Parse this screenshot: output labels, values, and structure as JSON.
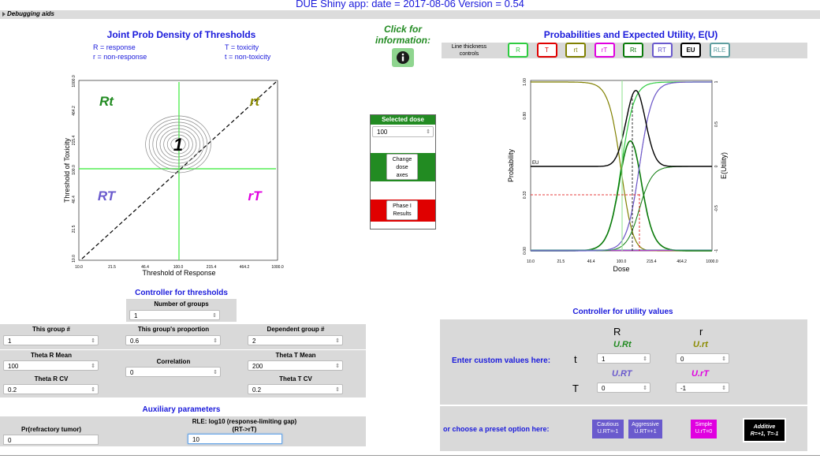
{
  "app_title": "DUE Shiny app: date = 2017-08-06 Version = 0.54",
  "debug_label": "Debugging aids",
  "left": {
    "heading": "Joint Prob Density of Thresholds",
    "legend": {
      "R": "R = response",
      "r": "r = non-response",
      "T": "T = toxicity",
      "t": "t = non-toxicity"
    },
    "quadrants": {
      "Rt": "Rt",
      "rt": "rt",
      "RT": "RT",
      "rT": "rT"
    },
    "peak_label": "1",
    "xlabel": "Threshold of Response",
    "ylabel": "Threshold of Toxicity",
    "ticks": [
      "10.0",
      "21.5",
      "46.4",
      "100.0",
      "215.4",
      "464.2",
      "1000.0"
    ]
  },
  "info": {
    "text1": "Click for",
    "text2": "information:",
    "icon": "info-icon"
  },
  "dose_box": {
    "header": "Selected dose",
    "value": "100",
    "btn1": [
      "Change",
      "dose",
      "axes"
    ],
    "btn2": [
      "Phase I",
      "Results"
    ]
  },
  "right": {
    "heading": "Probabilities and Expected Utility, E(U)",
    "line_thickness_label": [
      "Line thickness",
      "controls"
    ],
    "lt_buttons": [
      {
        "label": "R",
        "color": "#2ecc40"
      },
      {
        "label": "T",
        "color": "#e00000"
      },
      {
        "label": "rt",
        "color": "#808000"
      },
      {
        "label": "rT",
        "color": "#e000e0"
      },
      {
        "label": "Rt",
        "color": "#0a7a0a"
      },
      {
        "label": "RT",
        "color": "#6a5acd"
      },
      {
        "label": "EU",
        "color": "#000000"
      },
      {
        "label": "RLE",
        "color": "#5f9ea0"
      }
    ],
    "xlabel": "Dose",
    "ylabel_left": "Probability",
    "ylabel_right": "E(Utility)",
    "xticks": [
      "10.0",
      "21.5",
      "46.4",
      "100.0",
      "215.4",
      "464.2",
      "1000.0"
    ],
    "yticks_left": [
      "0.00",
      "0.33",
      "0.80",
      "1.00"
    ],
    "yticks_right": [
      "-1",
      "-0.5",
      "0",
      "0.5",
      "1"
    ],
    "eu_label": "EU"
  },
  "thresholds": {
    "heading": "Controller for thresholds",
    "num_groups_label": "Number of groups",
    "num_groups": "1",
    "this_group_label": "This group #",
    "this_group": "1",
    "proportion_label": "This group's proportion",
    "proportion": "0.6",
    "dependent_label": "Dependent group #",
    "dependent": "2",
    "thetaR_mean_label": "Theta R Mean",
    "thetaR_mean": "100",
    "correlation_label": "Correlation",
    "correlation": "0",
    "thetaT_mean_label": "Theta T Mean",
    "thetaT_mean": "200",
    "thetaR_cv_label": "Theta R CV",
    "thetaR_cv": "0.2",
    "thetaT_cv_label": "Theta T CV",
    "thetaT_cv": "0.2"
  },
  "aux": {
    "heading": "Auxiliary parameters",
    "pr_label": "Pr(refractory tumor)",
    "pr": "0",
    "rle_label1": "RLE: log10 (response-limiting gap)",
    "rle_label2": "(RT->rT)",
    "rle": "10"
  },
  "utility": {
    "heading": "Controller for utility values",
    "custom_label": "Enter custom values here:",
    "R": "R",
    "r": "r",
    "t": "t",
    "T": "T",
    "URt_label": "U.Rt",
    "Urt_label": "U.rt",
    "URT_label": "U.RT",
    "UrT_label": "U.rT",
    "URt": "1",
    "Urt": "0",
    "URT": "0",
    "UrT": "-1",
    "preset_label": "or choose a preset option here:",
    "cautious": [
      "Cautious",
      "U.RT=-1"
    ],
    "aggressive": [
      "Aggressive",
      "U.RT=+1"
    ],
    "simple": [
      "Simple",
      "U.rT=0"
    ],
    "additive": [
      "Additive",
      "R=+1, T=-1"
    ]
  }
}
